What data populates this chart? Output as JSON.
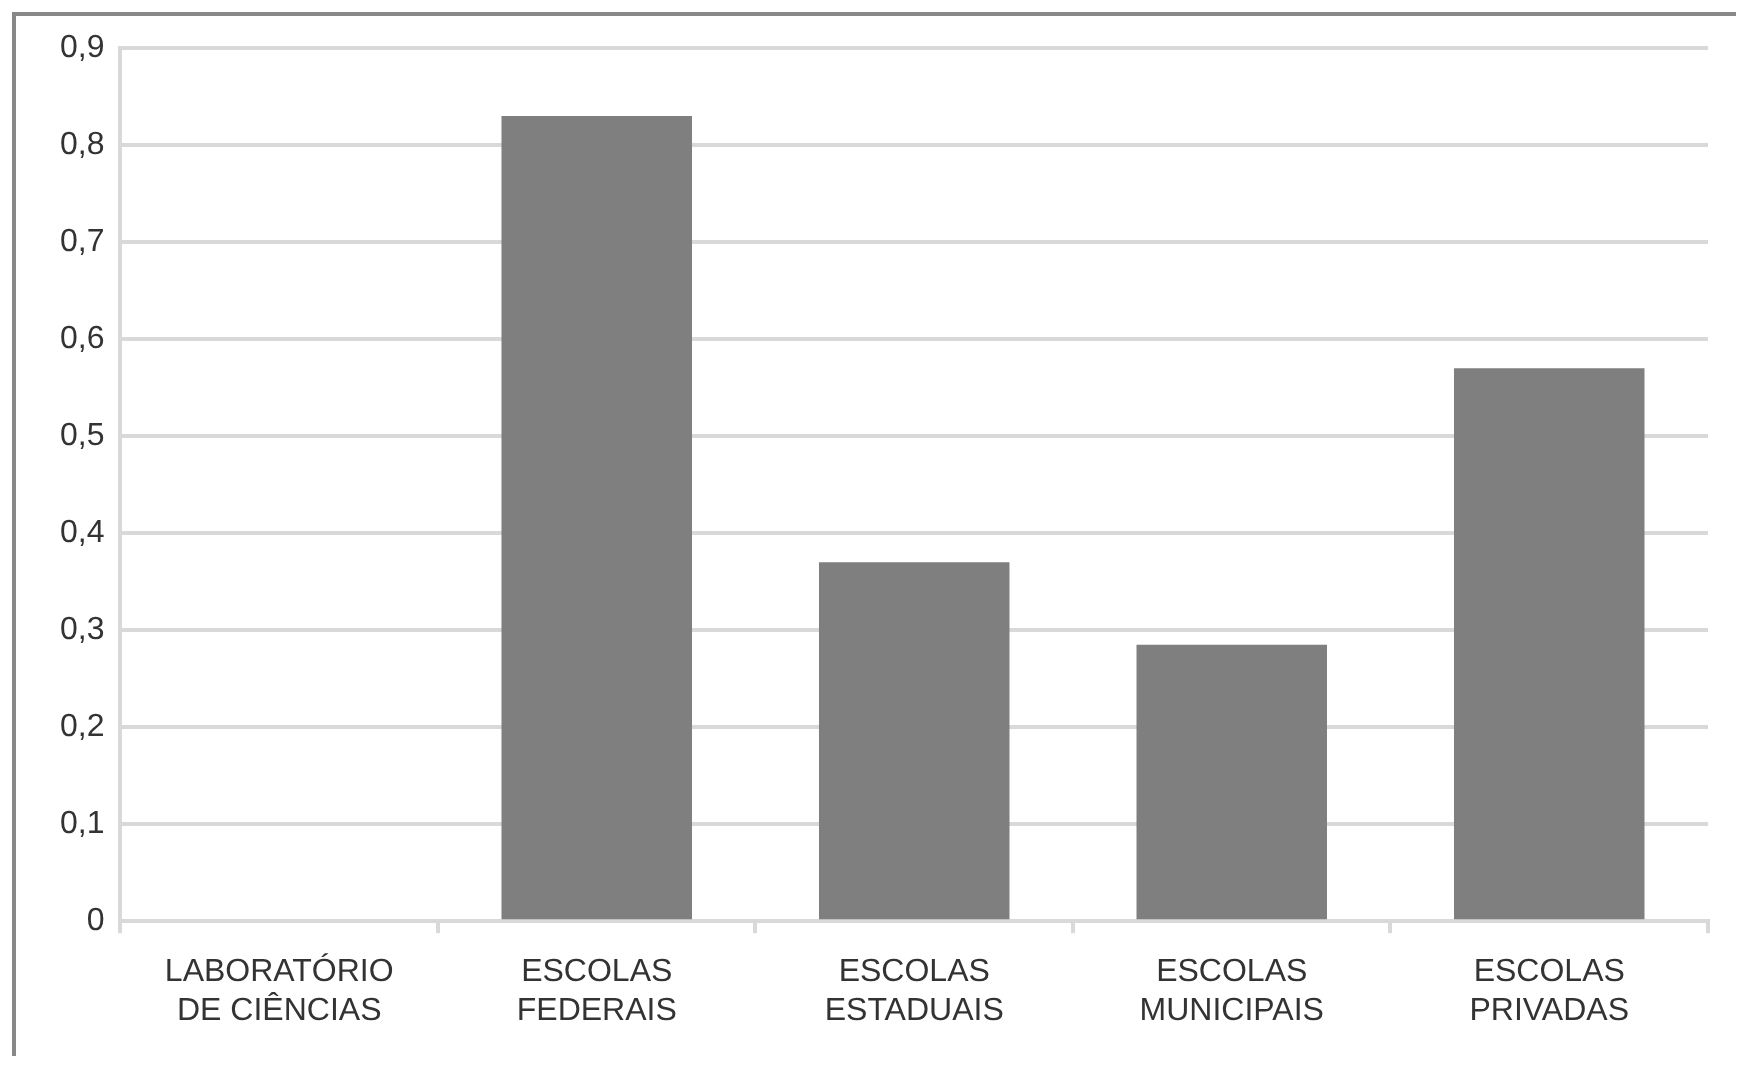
{
  "chart_data": {
    "type": "bar",
    "categories": [
      "LABORATÓRIO DE CIÊNCIAS",
      "ESCOLAS FEDERAIS",
      "ESCOLAS ESTADUAIS",
      "ESCOLAS MUNICIPAIS",
      "ESCOLAS PRIVADAS"
    ],
    "values": [
      0,
      0.83,
      0.37,
      0.285,
      0.57
    ],
    "color": "#7f7f7f",
    "ylim": [
      0,
      0.9
    ],
    "yticks": [
      0,
      {
        "value": 0.1,
        "label": "0,1"
      },
      {
        "value": 0.2,
        "label": "0,2"
      },
      {
        "value": 0.3,
        "label": "0,3"
      },
      {
        "value": 0.4,
        "label": "0,4"
      },
      {
        "value": 0.5,
        "label": "0,5"
      },
      {
        "value": 0.6,
        "label": "0,6"
      },
      {
        "value": 0.7,
        "label": "0,7"
      },
      {
        "value": 0.8,
        "label": "0,8"
      },
      {
        "value": 0.9,
        "label": "0,9"
      }
    ],
    "grid": "y"
  }
}
